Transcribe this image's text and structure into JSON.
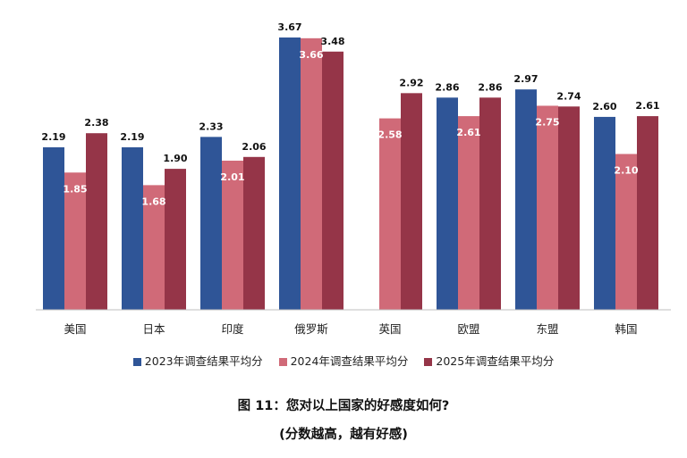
{
  "chart_data": {
    "type": "bar",
    "categories": [
      "美国",
      "日本",
      "印度",
      "俄罗斯",
      "英国",
      "欧盟",
      "东盟",
      "韩国"
    ],
    "series": [
      {
        "name": "2023年调查结果平均分",
        "color": "#2f5597",
        "values": [
          2.19,
          2.19,
          2.33,
          3.67,
          null,
          2.86,
          2.97,
          2.6
        ],
        "labels": [
          "2.19",
          "2.19",
          "2.33",
          "3.67",
          "",
          "2.86",
          "2.97",
          "2.60"
        ]
      },
      {
        "name": "2024年调查结果平均分",
        "color": "#d06a78",
        "values": [
          1.85,
          1.68,
          2.01,
          3.66,
          2.58,
          2.61,
          2.75,
          2.1
        ],
        "labels": [
          "1.85",
          "1.68",
          "2.01",
          "3.66",
          "2.58",
          "2.61",
          "2.75",
          "2.10"
        ]
      },
      {
        "name": "2025年调查结果平均分",
        "color": "#953548",
        "values": [
          2.38,
          1.9,
          2.06,
          3.48,
          2.92,
          2.86,
          2.74,
          2.61
        ],
        "labels": [
          "2.38",
          "1.90",
          "2.06",
          "3.48",
          "2.92",
          "2.86",
          "2.74",
          "2.61"
        ]
      }
    ],
    "ylim": [
      0,
      3.67
    ],
    "xlabel": "",
    "ylabel": "",
    "grid": false,
    "legend": "bottom"
  },
  "caption": {
    "line1": "图 11：您对以上国家的好感度如何?",
    "line2": "(分数越高，越有好感)"
  }
}
